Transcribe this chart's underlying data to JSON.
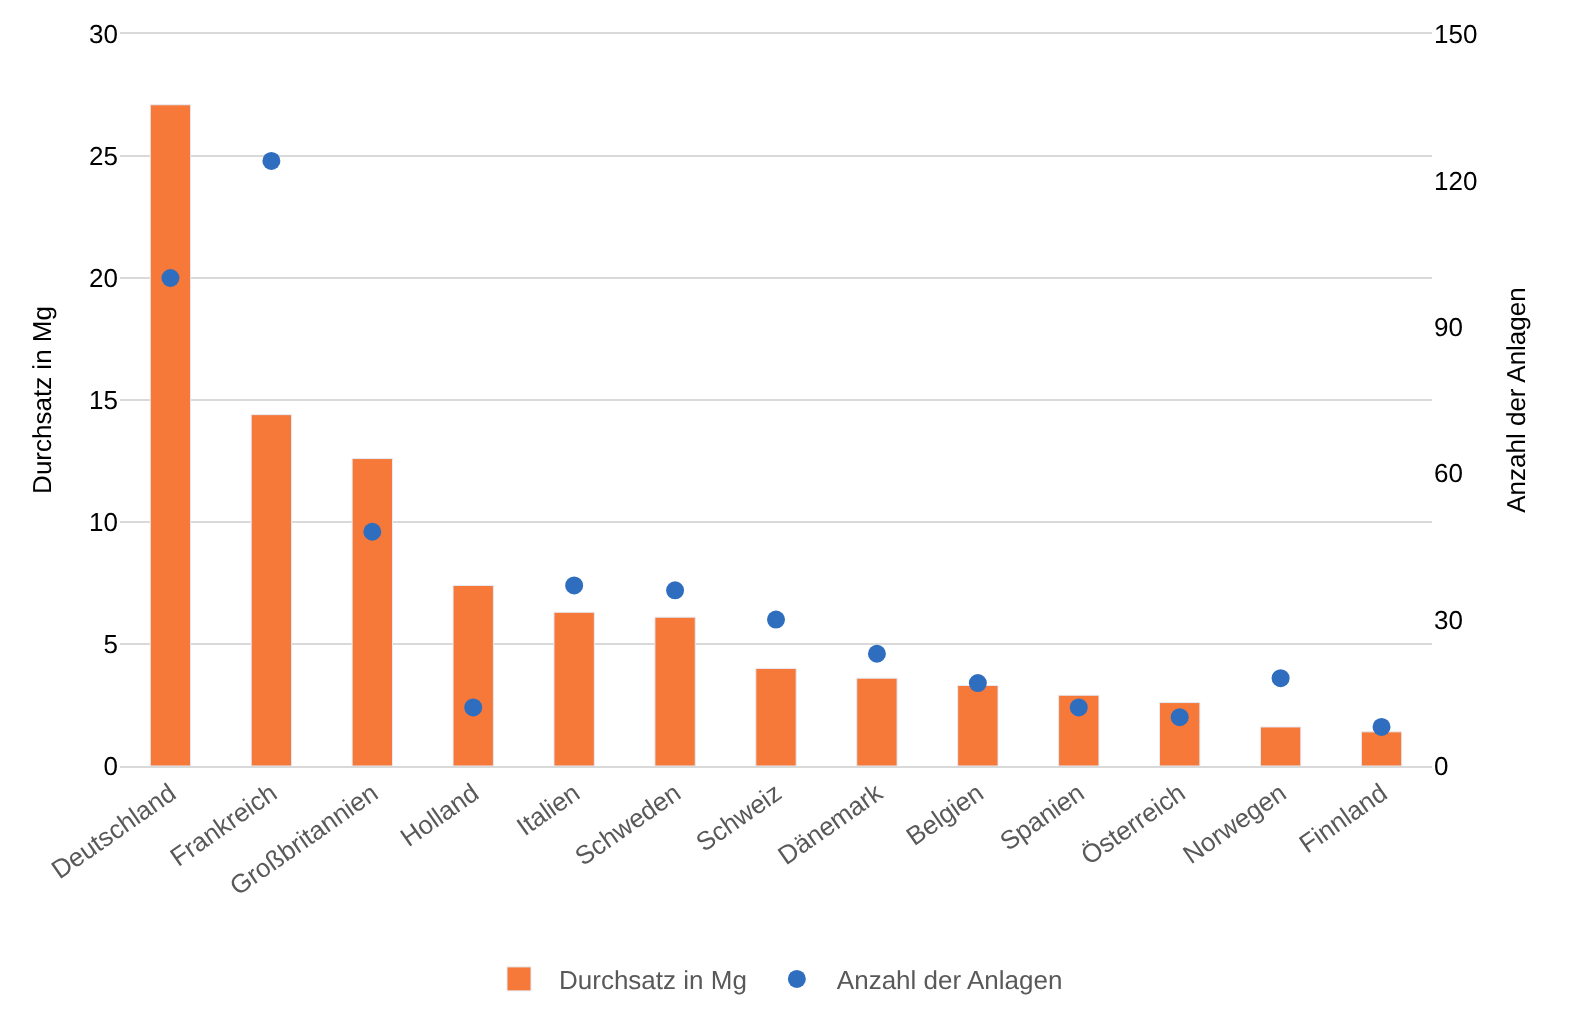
{
  "chart_data": {
    "type": "bar",
    "categories": [
      "Deutschland",
      "Frankreich",
      "Großbritannien",
      "Holland",
      "Italien",
      "Schweden",
      "Schweiz",
      "Dänemark",
      "Belgien",
      "Spanien",
      "Österreich",
      "Norwegen",
      "Finnland"
    ],
    "series": [
      {
        "name": "Durchsatz in Mg",
        "color": "#f6793a",
        "values": [
          27.1,
          14.4,
          12.6,
          7.4,
          6.3,
          6.1,
          4.0,
          3.6,
          3.3,
          2.9,
          2.6,
          1.6,
          1.4
        ]
      },
      {
        "name": "Anzahl der Anlagen",
        "type": "scatter",
        "axis": "y2",
        "color": "#2f6ebf",
        "values": [
          100,
          124,
          48,
          12,
          37,
          36,
          30,
          23,
          17,
          12,
          10,
          18,
          8
        ]
      }
    ],
    "ylabel": "Durchsatz in Mg",
    "y2label": "Anzahl der Anlagen",
    "ylim": [
      0,
      30
    ],
    "yticks": [
      0,
      5,
      10,
      15,
      20,
      25,
      30
    ],
    "y2lim": [
      0,
      150
    ],
    "y2ticks": [
      0,
      30,
      60,
      90,
      120,
      150
    ],
    "grid": "y",
    "legend": "bottom",
    "marker": "circle"
  }
}
